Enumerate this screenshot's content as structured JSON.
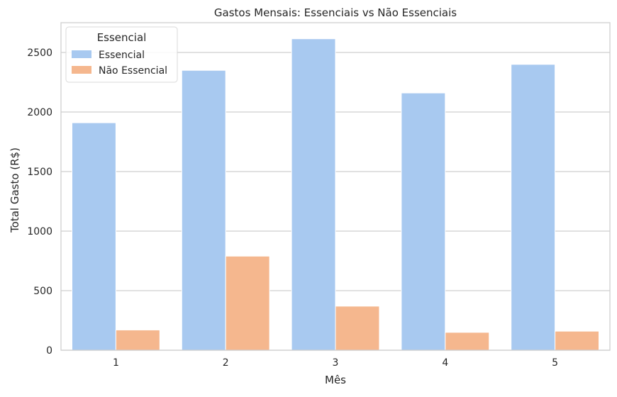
{
  "chart_data": {
    "type": "bar",
    "title": "Gastos Mensais: Essenciais vs Não Essenciais",
    "xlabel": "Mês",
    "ylabel": "Total Gasto (R$)",
    "categories": [
      "1",
      "2",
      "3",
      "4",
      "5"
    ],
    "ylim": [
      0,
      2750
    ],
    "yticks": [
      0,
      500,
      1000,
      1500,
      2000,
      2500
    ],
    "grid": true,
    "legend": {
      "title": "Essencial",
      "placement": "top-left"
    },
    "series": [
      {
        "name": "Essencial",
        "color": "#a8c9f0",
        "values": [
          1910,
          2350,
          2615,
          2160,
          2400
        ]
      },
      {
        "name": "Não Essencial",
        "color": "#f5b78e",
        "values": [
          170,
          790,
          370,
          150,
          160
        ]
      }
    ]
  }
}
